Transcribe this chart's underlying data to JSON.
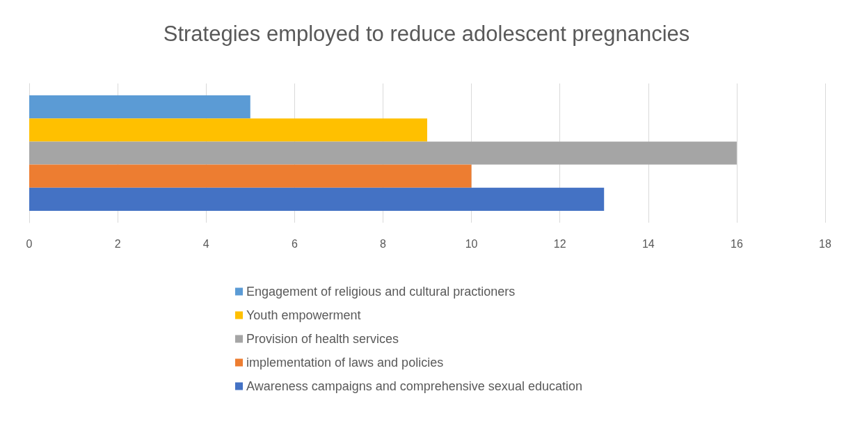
{
  "chart_data": {
    "type": "bar",
    "orientation": "horizontal",
    "title": "Strategies employed to reduce adolescent pregnancies",
    "categories": [
      null
    ],
    "series": [
      {
        "name": "Engagement of religious and cultural practioners",
        "color": "#5b9bd5",
        "values": [
          5
        ]
      },
      {
        "name": "Youth empowerment",
        "color": "#ffc000",
        "values": [
          9
        ]
      },
      {
        "name": "Provision of health services",
        "color": "#a5a5a5",
        "values": [
          16
        ]
      },
      {
        "name": "implementation of laws and policies",
        "color": "#ed7d31",
        "values": [
          10
        ]
      },
      {
        "name": "Awareness campaigns and comprehensive sexual education",
        "color": "#4472c4",
        "values": [
          13
        ]
      }
    ],
    "xlim": [
      0,
      18
    ],
    "xticks": [
      0,
      2,
      4,
      6,
      8,
      10,
      12,
      14,
      16,
      18
    ],
    "grid": "x",
    "legend": "bottom"
  }
}
